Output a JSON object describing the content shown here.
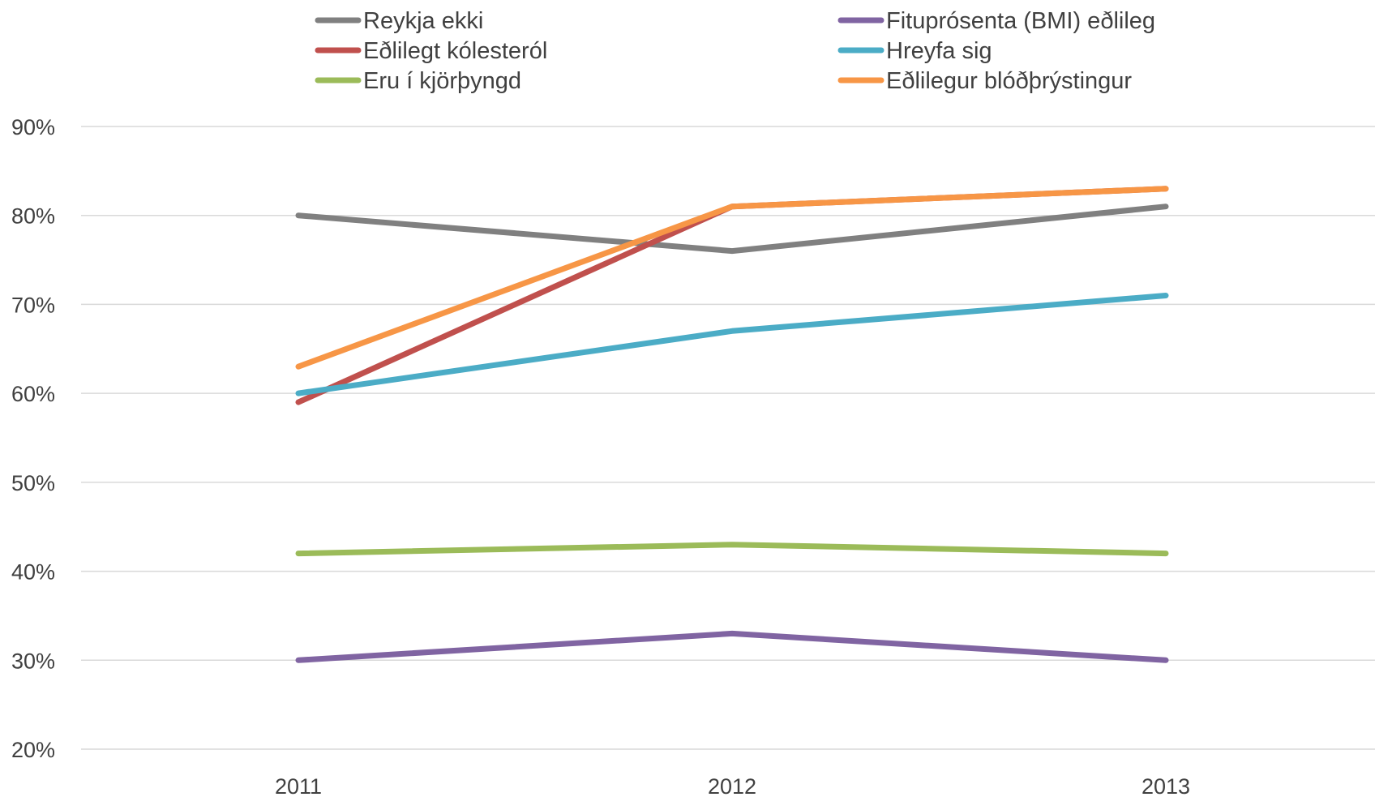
{
  "chart_data": {
    "type": "line",
    "categories": [
      "2011",
      "2012",
      "2013"
    ],
    "ylim": [
      0.2,
      0.9
    ],
    "ytick_labels": [
      "20%",
      "30%",
      "40%",
      "50%",
      "60%",
      "70%",
      "80%",
      "90%"
    ],
    "yticks": [
      0.2,
      0.3,
      0.4,
      0.5,
      0.6,
      0.7,
      0.8,
      0.9
    ],
    "grid": true,
    "legend_position": "top",
    "series": [
      {
        "name": "Reykja ekki",
        "color": "#808080",
        "values": [
          0.8,
          0.76,
          0.81
        ]
      },
      {
        "name": "Eðlilegt kólesteról",
        "color": "#c0504d",
        "values": [
          0.59,
          0.81,
          0.83
        ]
      },
      {
        "name": "Eru í kjörþyngd",
        "color": "#9bbb59",
        "values": [
          0.42,
          0.43,
          0.42
        ]
      },
      {
        "name": "Fituprósenta (BMI) eðlileg",
        "color": "#8064a2",
        "values": [
          0.3,
          0.33,
          0.3
        ]
      },
      {
        "name": "Hreyfa sig",
        "color": "#4bacc6",
        "values": [
          0.6,
          0.67,
          0.71
        ]
      },
      {
        "name": "Eðlilegur blóðþrýstingur",
        "color": "#f79646",
        "values": [
          0.63,
          0.81,
          0.83
        ]
      }
    ]
  }
}
